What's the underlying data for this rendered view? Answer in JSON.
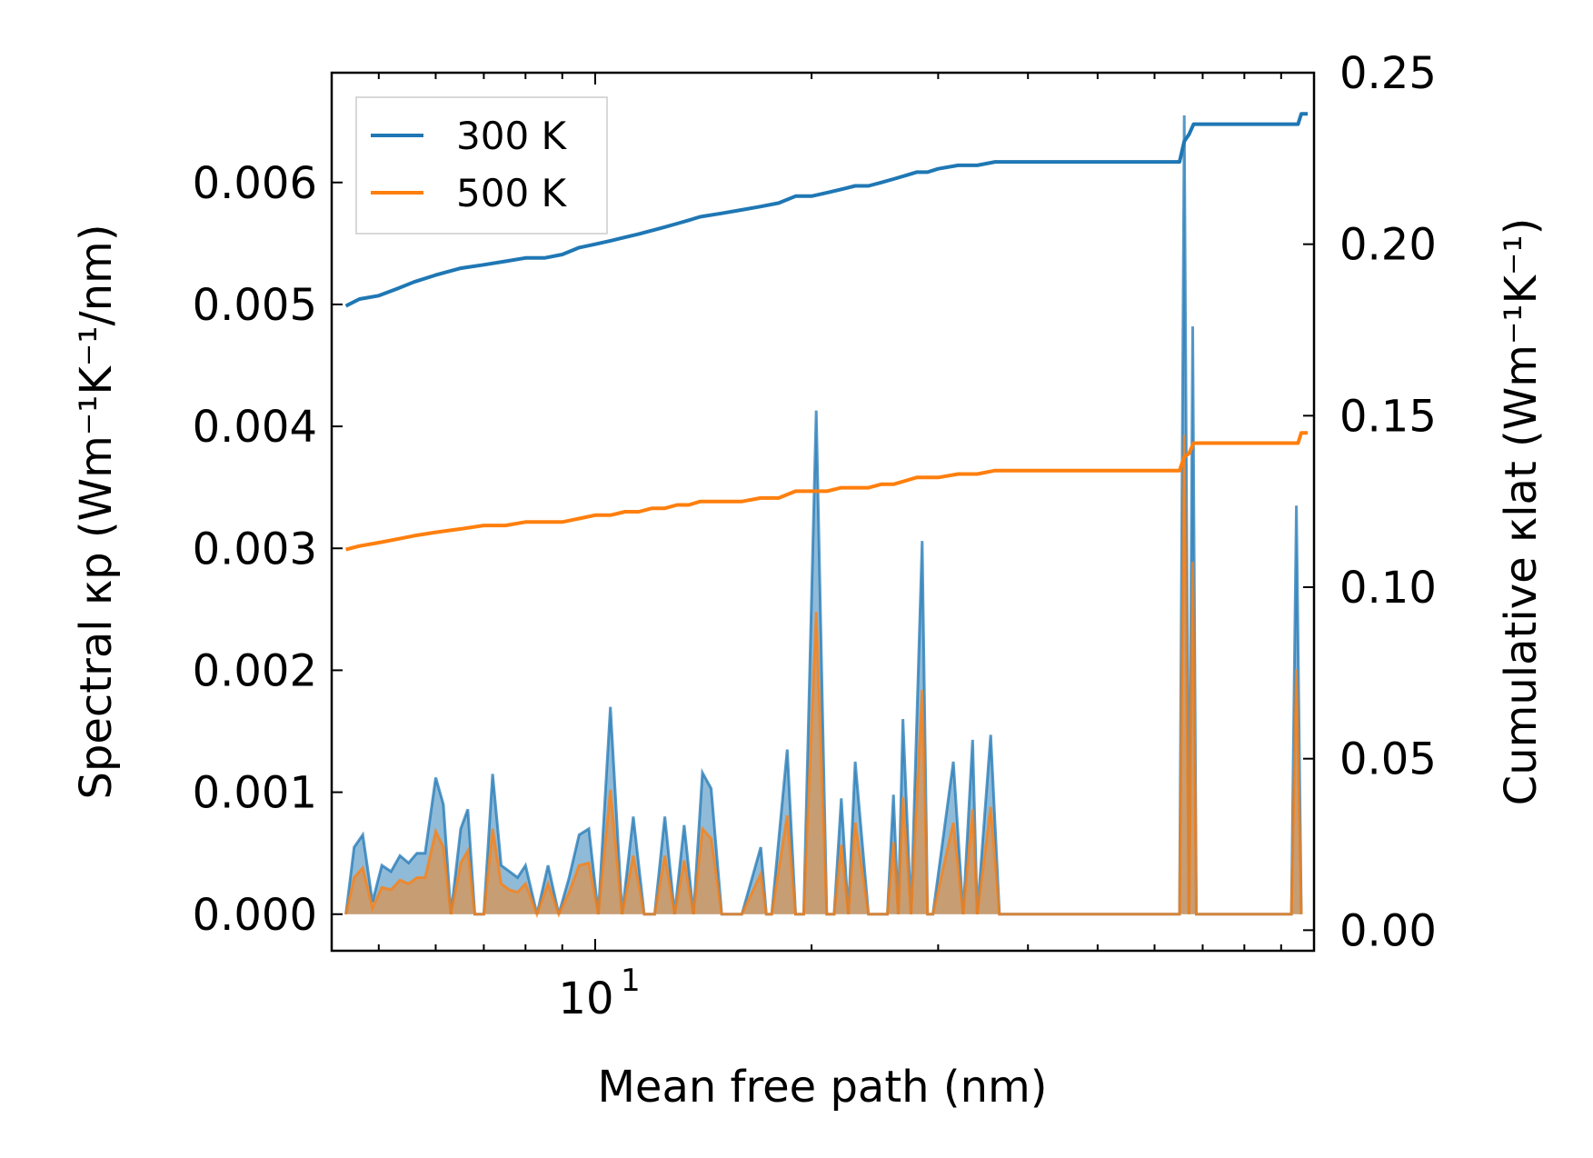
{
  "chart_data": {
    "type": "line",
    "xlabel": "Mean free path (nm)",
    "ylabel_left": "Spectral κp (Wm⁻¹K⁻¹/nm)",
    "ylabel_right": "Cumulative κlat (Wm⁻¹K⁻¹)",
    "xscale": "log",
    "xlim": [
      4.3,
      100
    ],
    "ylim_left": [
      -0.0003,
      0.0069
    ],
    "ylim_right": [
      -0.006,
      0.25
    ],
    "x_tick_labels": [
      {
        "value": 10,
        "base": "10",
        "exp": "1"
      }
    ],
    "y_ticks_left": [
      "0.000",
      "0.001",
      "0.002",
      "0.003",
      "0.004",
      "0.005",
      "0.006"
    ],
    "y_ticks_right": [
      "0.00",
      "0.05",
      "0.10",
      "0.15",
      "0.20",
      "0.25"
    ],
    "legend": {
      "position": "top-left",
      "entries": [
        "300 K",
        "500 K"
      ]
    },
    "colors": {
      "300 K": "#1f77b4",
      "500 K": "#ff7f0e",
      "fill_300": "#1f77b4",
      "fill_500": "#ff7f0e"
    },
    "series": [
      {
        "name": "300 K",
        "axis": "right",
        "x": [
          4.5,
          4.7,
          5.0,
          5.3,
          5.6,
          6.0,
          6.5,
          7.0,
          7.5,
          8.0,
          8.5,
          9.0,
          9.5,
          10.0,
          10.5,
          11.0,
          11.5,
          12.0,
          12.5,
          13.0,
          13.5,
          14.0,
          15.0,
          16.0,
          17.0,
          18.0,
          19.0,
          20.0,
          21.0,
          22.0,
          23.0,
          24.0,
          25.0,
          26.0,
          27.0,
          28.0,
          29.0,
          30.0,
          32.0,
          34.0,
          36.0,
          38.0,
          40.0,
          45.0,
          50.0,
          55.0,
          60.0,
          65.0,
          66.0,
          67.0,
          68.0,
          75.0,
          85.0,
          95.0,
          96.0,
          98.0
        ],
        "values": [
          0.182,
          0.184,
          0.185,
          0.187,
          0.189,
          0.191,
          0.193,
          0.194,
          0.195,
          0.196,
          0.196,
          0.197,
          0.199,
          0.2,
          0.201,
          0.202,
          0.203,
          0.204,
          0.205,
          0.206,
          0.207,
          0.208,
          0.209,
          0.21,
          0.211,
          0.212,
          0.214,
          0.214,
          0.215,
          0.216,
          0.217,
          0.217,
          0.218,
          0.219,
          0.22,
          0.221,
          0.221,
          0.222,
          0.223,
          0.223,
          0.224,
          0.224,
          0.224,
          0.224,
          0.224,
          0.224,
          0.224,
          0.224,
          0.23,
          0.232,
          0.235,
          0.235,
          0.235,
          0.235,
          0.238,
          0.238
        ]
      },
      {
        "name": "500 K",
        "axis": "right",
        "x": [
          4.5,
          4.7,
          5.0,
          5.3,
          5.6,
          6.0,
          6.5,
          7.0,
          7.5,
          8.0,
          8.5,
          9.0,
          9.5,
          10.0,
          10.5,
          11.0,
          11.5,
          12.0,
          12.5,
          13.0,
          13.5,
          14.0,
          15.0,
          16.0,
          17.0,
          18.0,
          19.0,
          20.0,
          21.0,
          22.0,
          23.0,
          24.0,
          25.0,
          26.0,
          27.0,
          28.0,
          29.0,
          30.0,
          32.0,
          34.0,
          36.0,
          38.0,
          40.0,
          45.0,
          50.0,
          55.0,
          60.0,
          65.0,
          66.0,
          67.0,
          68.0,
          75.0,
          85.0,
          95.0,
          96.0,
          98.0
        ],
        "values": [
          0.111,
          0.112,
          0.113,
          0.114,
          0.115,
          0.116,
          0.117,
          0.118,
          0.118,
          0.119,
          0.119,
          0.119,
          0.12,
          0.121,
          0.121,
          0.122,
          0.122,
          0.123,
          0.123,
          0.124,
          0.124,
          0.125,
          0.125,
          0.125,
          0.126,
          0.126,
          0.128,
          0.128,
          0.128,
          0.129,
          0.129,
          0.129,
          0.13,
          0.13,
          0.131,
          0.132,
          0.132,
          0.132,
          0.133,
          0.133,
          0.134,
          0.134,
          0.134,
          0.134,
          0.134,
          0.134,
          0.134,
          0.134,
          0.138,
          0.139,
          0.142,
          0.142,
          0.142,
          0.142,
          0.145,
          0.145
        ]
      },
      {
        "name": "300 K spectral",
        "axis": "left",
        "render": "filled",
        "x": [
          4.5,
          4.62,
          4.75,
          4.9,
          5.05,
          5.2,
          5.35,
          5.5,
          5.65,
          5.8,
          6.0,
          6.15,
          6.3,
          6.5,
          6.65,
          6.8,
          7.0,
          7.2,
          7.4,
          7.6,
          7.8,
          8.0,
          8.3,
          8.6,
          8.9,
          9.2,
          9.5,
          9.8,
          10.1,
          10.5,
          10.9,
          11.3,
          11.7,
          12.1,
          12.5,
          12.9,
          13.3,
          13.7,
          14.1,
          14.5,
          15.0,
          16.0,
          17.0,
          17.3,
          17.6,
          18.5,
          19.0,
          19.5,
          20.3,
          21.0,
          21.5,
          22.0,
          22.5,
          23.0,
          24.0,
          25.5,
          26.0,
          26.4,
          26.8,
          27.5,
          28.5,
          29.0,
          29.5,
          31.5,
          32.5,
          33.5,
          34.0,
          35.5,
          36.5,
          37.5,
          40.0,
          44.0,
          47.0,
          48.5,
          50.0,
          60.0,
          65.0,
          66.0,
          67.0,
          67.8,
          68.6,
          70.0,
          80.0,
          93.0,
          94.5,
          96.0
        ],
        "values": [
          0.0,
          0.00055,
          0.00065,
          0.0001,
          0.0004,
          0.00035,
          0.00048,
          0.00042,
          0.0005,
          0.0005,
          0.00112,
          0.0009,
          0.0,
          0.0007,
          0.00086,
          0.0,
          0.0,
          0.00115,
          0.0004,
          0.00035,
          0.0003,
          0.0004,
          0.0,
          0.0004,
          0.0,
          0.0003,
          0.00065,
          0.0007,
          0.0,
          0.0017,
          0.0,
          0.0008,
          0.0,
          0.0,
          0.0008,
          0.0,
          0.00073,
          0.0,
          0.00116,
          0.00103,
          0.0,
          0.0,
          0.00055,
          0.0,
          0.0,
          0.00135,
          0.0,
          0.0,
          0.00413,
          0.0,
          0.0,
          0.00095,
          0.0,
          0.00125,
          0.0,
          0.0,
          0.00098,
          0.0,
          0.0016,
          0.0,
          0.00306,
          0.0,
          0.0,
          0.00125,
          0.0,
          0.00143,
          0.0,
          0.00147,
          0.0,
          0.0,
          0.0,
          0.0,
          0.0,
          0.0,
          0.0,
          0.0,
          0.0,
          0.00655,
          0.0,
          0.00482,
          0.0,
          0.0,
          0.0,
          0.0,
          0.00335,
          0.0
        ]
      },
      {
        "name": "500 K spectral",
        "axis": "left",
        "render": "filled",
        "x": [
          4.5,
          4.62,
          4.75,
          4.9,
          5.05,
          5.2,
          5.35,
          5.5,
          5.65,
          5.8,
          6.0,
          6.15,
          6.3,
          6.5,
          6.65,
          6.8,
          7.0,
          7.2,
          7.4,
          7.6,
          7.8,
          8.0,
          8.3,
          8.6,
          8.9,
          9.2,
          9.5,
          9.8,
          10.1,
          10.5,
          10.9,
          11.3,
          11.7,
          12.1,
          12.5,
          12.9,
          13.3,
          13.7,
          14.1,
          14.5,
          15.0,
          16.0,
          17.0,
          17.3,
          17.6,
          18.5,
          19.0,
          19.5,
          20.3,
          21.0,
          21.5,
          22.0,
          22.5,
          23.0,
          24.0,
          25.5,
          26.0,
          26.4,
          26.8,
          27.5,
          28.5,
          29.0,
          29.5,
          31.5,
          32.5,
          33.5,
          34.0,
          35.5,
          36.5,
          37.5,
          40.0,
          44.0,
          47.0,
          48.5,
          50.0,
          60.0,
          65.0,
          66.0,
          67.0,
          67.8,
          68.6,
          70.0,
          80.0,
          93.0,
          94.5,
          96.0
        ],
        "values": [
          0.0,
          0.0003,
          0.00038,
          5e-05,
          0.00022,
          0.0002,
          0.00028,
          0.00025,
          0.0003,
          0.0003,
          0.00068,
          0.00055,
          0.0,
          0.00042,
          0.00052,
          0.0,
          0.0,
          0.0007,
          0.00025,
          0.0002,
          0.00018,
          0.00025,
          0.0,
          0.00025,
          0.0,
          0.00018,
          0.0004,
          0.00042,
          0.0,
          0.00102,
          0.0,
          0.00048,
          0.0,
          0.0,
          0.00048,
          0.0,
          0.00044,
          0.0,
          0.0007,
          0.00062,
          0.0,
          0.0,
          0.00033,
          0.0,
          0.0,
          0.00081,
          0.0,
          0.0,
          0.00248,
          0.0,
          0.0,
          0.00057,
          0.0,
          0.00075,
          0.0,
          0.0,
          0.00059,
          0.0,
          0.00096,
          0.0,
          0.00184,
          0.0,
          0.0,
          0.00075,
          0.0,
          0.00086,
          0.0,
          0.00088,
          0.0,
          0.0,
          0.0,
          0.0,
          0.0,
          0.0,
          0.0,
          0.0,
          0.0,
          0.00393,
          0.0,
          0.00289,
          0.0,
          0.0,
          0.0,
          0.0,
          0.00201,
          0.0
        ]
      }
    ]
  }
}
